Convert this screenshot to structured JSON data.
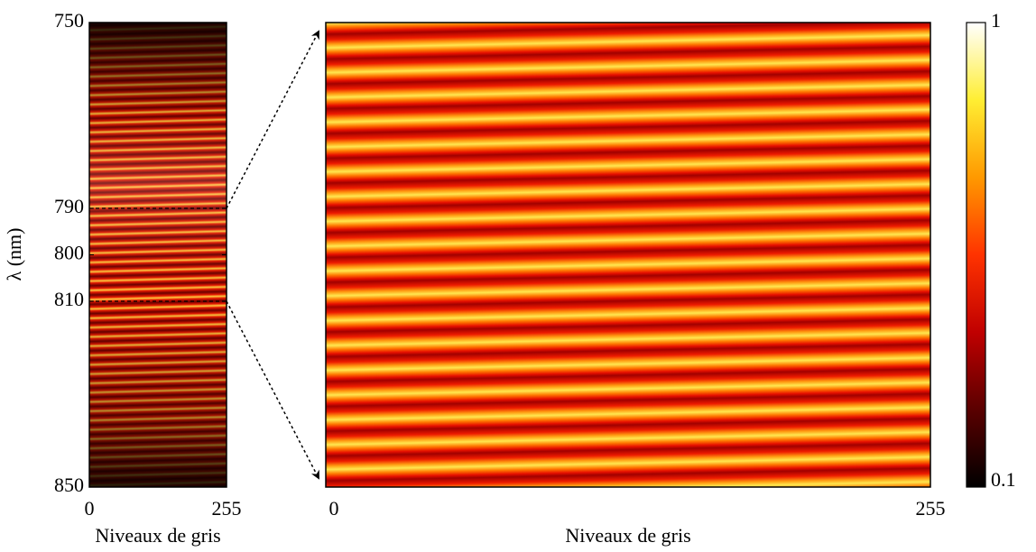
{
  "chart_data": [
    {
      "type": "heatmap",
      "xlabel": "Niveaux de gris",
      "ylabel": "λ (nm)",
      "xlim": [
        0,
        255
      ],
      "xticks": [
        0,
        255
      ],
      "ylim": [
        750,
        850
      ],
      "yticks": [
        750,
        790,
        800,
        810,
        850
      ]
    },
    {
      "type": "heatmap",
      "xlabel": "Niveaux de gris",
      "xlim": [
        0,
        255
      ],
      "xticks": [
        0,
        255
      ],
      "ylim": [
        790,
        810
      ]
    },
    {
      "type": "colorbar",
      "clim": [
        0.1,
        1
      ],
      "cticks": [
        0.1,
        1
      ],
      "log_scale": true,
      "colors": [
        "#000000",
        "#5a0000",
        "#c00000",
        "#ff3300",
        "#ff9900",
        "#ffee33",
        "#ffffff"
      ]
    }
  ]
}
